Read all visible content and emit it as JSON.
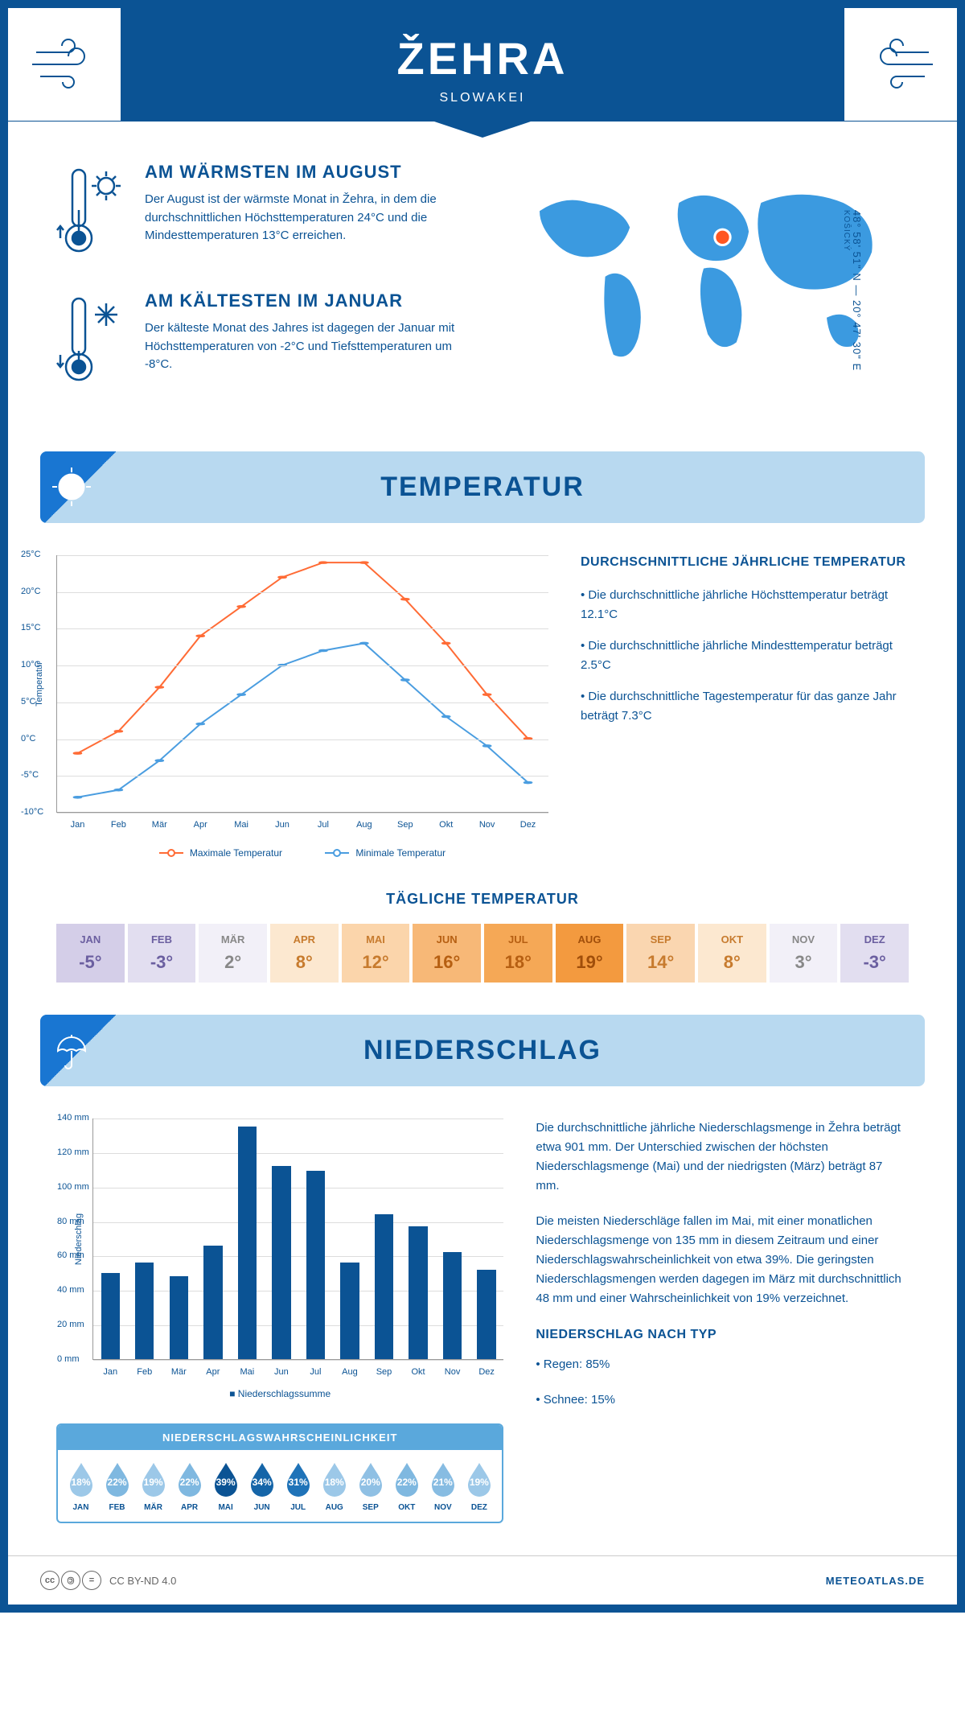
{
  "header": {
    "title": "ŽEHRA",
    "subtitle": "SLOWAKEI"
  },
  "coords": {
    "text": "48° 58' 51\" N — 20° 47' 30\" E",
    "region": "KOŠICKÝ"
  },
  "facts": {
    "warm": {
      "title": "AM WÄRMSTEN IM AUGUST",
      "text": "Der August ist der wärmste Monat in Žehra, in dem die durchschnittlichen Höchsttemperaturen 24°C und die Mindesttemperaturen 13°C erreichen."
    },
    "cold": {
      "title": "AM KÄLTESTEN IM JANUAR",
      "text": "Der kälteste Monat des Jahres ist dagegen der Januar mit Höchsttemperaturen von -2°C und Tiefsttemperaturen um -8°C."
    }
  },
  "sections": {
    "temp": "TEMPERATUR",
    "precip": "NIEDERSCHLAG"
  },
  "temp_chart": {
    "type": "line",
    "months": [
      "Jan",
      "Feb",
      "Mär",
      "Apr",
      "Mai",
      "Jun",
      "Jul",
      "Aug",
      "Sep",
      "Okt",
      "Nov",
      "Dez"
    ],
    "max_values": [
      -2,
      1,
      7,
      14,
      18,
      22,
      24,
      24,
      19,
      13,
      6,
      0
    ],
    "min_values": [
      -8,
      -7,
      -3,
      2,
      6,
      10,
      12,
      13,
      8,
      3,
      -1,
      -6
    ],
    "max_color": "#ff6b35",
    "min_color": "#4a9de0",
    "ylim": [
      -10,
      25
    ],
    "ytick_step": 5,
    "y_label": "Temperatur",
    "grid_color": "#dddddd",
    "legend_max": "Maximale Temperatur",
    "legend_min": "Minimale Temperatur",
    "line_width": 2,
    "marker_size": 5
  },
  "temp_info": {
    "title": "DURCHSCHNITTLICHE JÄHRLICHE TEMPERATUR",
    "lines": [
      "• Die durchschnittliche jährliche Höchsttemperatur beträgt 12.1°C",
      "• Die durchschnittliche jährliche Mindesttemperatur beträgt 2.5°C",
      "• Die durchschnittliche Tagestemperatur für das ganze Jahr beträgt 7.3°C"
    ]
  },
  "daily_temp": {
    "title": "TÄGLICHE TEMPERATUR",
    "months": [
      "JAN",
      "FEB",
      "MÄR",
      "APR",
      "MAI",
      "JUN",
      "JUL",
      "AUG",
      "SEP",
      "OKT",
      "NOV",
      "DEZ"
    ],
    "values": [
      "-5°",
      "-3°",
      "2°",
      "8°",
      "12°",
      "16°",
      "18°",
      "19°",
      "14°",
      "8°",
      "3°",
      "-3°"
    ],
    "bg_colors": [
      "#d4cee8",
      "#e2def0",
      "#f2f0f8",
      "#fce8d0",
      "#fbd5ab",
      "#f7b877",
      "#f5a856",
      "#f39a3f",
      "#fad6b0",
      "#fce8d0",
      "#f2f0f8",
      "#e2def0"
    ],
    "text_colors": [
      "#6b5fa0",
      "#6b5fa0",
      "#888",
      "#c77b2e",
      "#c77b2e",
      "#b65f12",
      "#b65f12",
      "#a04e0a",
      "#c77b2e",
      "#c77b2e",
      "#888",
      "#6b5fa0"
    ]
  },
  "precip_chart": {
    "type": "bar",
    "months": [
      "Jan",
      "Feb",
      "Mär",
      "Apr",
      "Mai",
      "Jun",
      "Jul",
      "Aug",
      "Sep",
      "Okt",
      "Nov",
      "Dez"
    ],
    "values": [
      50,
      56,
      48,
      66,
      135,
      112,
      109,
      56,
      84,
      77,
      62,
      52
    ],
    "bar_color": "#0b5394",
    "ylim": [
      0,
      140
    ],
    "ytick_step": 20,
    "y_label": "Niederschlag",
    "y_suffix": " mm",
    "grid_color": "#dddddd",
    "legend": "Niederschlagssumme",
    "bar_width_ratio": 0.55
  },
  "precip_text": {
    "p1": "Die durchschnittliche jährliche Niederschlagsmenge in Žehra beträgt etwa 901 mm. Der Unterschied zwischen der höchsten Niederschlagsmenge (Mai) und der niedrigsten (März) beträgt 87 mm.",
    "p2": "Die meisten Niederschläge fallen im Mai, mit einer monatlichen Niederschlagsmenge von 135 mm in diesem Zeitraum und einer Niederschlagswahrscheinlichkeit von etwa 39%. Die geringsten Niederschlagsmengen werden dagegen im März mit durchschnittlich 48 mm und einer Wahrscheinlichkeit von 19% verzeichnet.",
    "type_title": "NIEDERSCHLAG NACH TYP",
    "type_lines": [
      "• Regen: 85%",
      "• Schnee: 15%"
    ]
  },
  "prob": {
    "title": "NIEDERSCHLAGSWAHRSCHEINLICHKEIT",
    "months": [
      "JAN",
      "FEB",
      "MÄR",
      "APR",
      "MAI",
      "JUN",
      "JUL",
      "AUG",
      "SEP",
      "OKT",
      "NOV",
      "DEZ"
    ],
    "values": [
      "18%",
      "22%",
      "19%",
      "22%",
      "39%",
      "34%",
      "31%",
      "18%",
      "20%",
      "22%",
      "21%",
      "19%"
    ],
    "fill_colors": [
      "#9cc8e8",
      "#7fb8e0",
      "#9cc8e8",
      "#7fb8e0",
      "#0b5394",
      "#1565a8",
      "#1f73b8",
      "#9cc8e8",
      "#8fc0e4",
      "#7fb8e0",
      "#87bce2",
      "#9cc8e8"
    ],
    "text_colors": [
      "#fff",
      "#fff",
      "#fff",
      "#fff",
      "#fff",
      "#fff",
      "#fff",
      "#fff",
      "#fff",
      "#fff",
      "#fff",
      "#fff"
    ]
  },
  "footer": {
    "license": "CC BY-ND 4.0",
    "site": "METEOATLAS.DE"
  },
  "colors": {
    "primary": "#0b5394",
    "light_blue": "#b8d9f0",
    "accent": "#5aa8dc"
  }
}
